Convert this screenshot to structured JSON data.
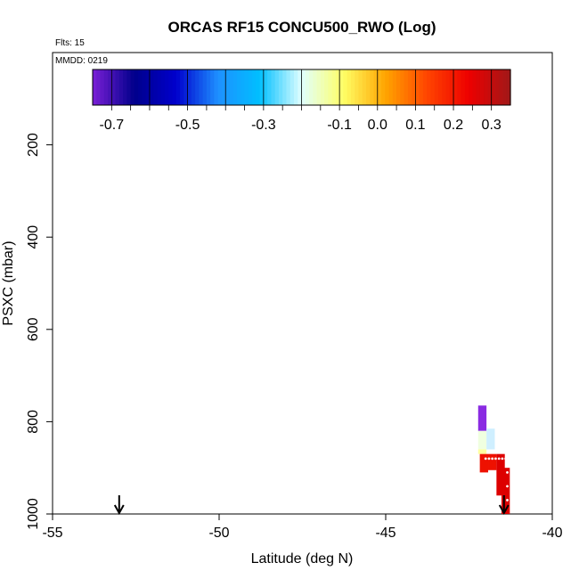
{
  "chart_data": {
    "type": "heatmap",
    "title": "ORCAS RF15 CONCU500_RWO (Log)",
    "flights_label": "Flts: 15",
    "date_label": "MMDD: 0219",
    "xlabel": "Latitude (deg N)",
    "ylabel": "PSXC (mbar)",
    "xlim": [
      -55,
      -40
    ],
    "ylim": [
      1000,
      0
    ],
    "x_ticks": [
      -55,
      -50,
      -45,
      -40
    ],
    "x_tick_labels": [
      "-55",
      "-50",
      "-45",
      "-40"
    ],
    "y_ticks": [
      200,
      400,
      600,
      800,
      1000
    ],
    "y_tick_labels": [
      "200",
      "400",
      "600",
      "800",
      "1000"
    ],
    "colorbar": {
      "range": [
        -0.75,
        0.35
      ],
      "ticks": [
        -0.7,
        -0.5,
        -0.3,
        -0.1,
        0.0,
        0.1,
        0.2,
        0.3
      ],
      "tick_labels": [
        "-0.7",
        "-0.5",
        "-0.3",
        "-0.1",
        "0.0",
        "0.1",
        "0.2",
        "0.3"
      ],
      "stops": [
        "#7b1fd6",
        "#00008b",
        "#0000cd",
        "#1e90ff",
        "#00bfff",
        "#e0ffff",
        "#ffff66",
        "#ffa500",
        "#ff4500",
        "#ee0000",
        "#a01818"
      ]
    },
    "cells": [
      {
        "lat": -42.1,
        "p0": 765,
        "p1": 820,
        "color": "#8a2be2"
      },
      {
        "lat": -42.1,
        "p0": 820,
        "p1": 860,
        "color": "#f0ffe0"
      },
      {
        "lat": -41.85,
        "p0": 815,
        "p1": 860,
        "color": "#cfefff"
      },
      {
        "lat": -42.1,
        "p0": 860,
        "p1": 870,
        "color": "#ffffa0"
      },
      {
        "lat": -42.05,
        "p0": 870,
        "p1": 910,
        "color": "#ee1100"
      },
      {
        "lat": -41.8,
        "p0": 870,
        "p1": 905,
        "color": "#ee1100"
      },
      {
        "lat": -41.55,
        "p0": 870,
        "p1": 960,
        "color": "#dd0000"
      },
      {
        "lat": -41.4,
        "p0": 900,
        "p1": 1000,
        "color": "#dd0000"
      }
    ],
    "track_points": [
      {
        "lat": -42.0,
        "p": 880
      },
      {
        "lat": -41.9,
        "p": 880
      },
      {
        "lat": -41.8,
        "p": 880
      },
      {
        "lat": -41.7,
        "p": 880
      },
      {
        "lat": -41.6,
        "p": 880
      },
      {
        "lat": -41.5,
        "p": 880
      },
      {
        "lat": -41.4,
        "p": 880
      },
      {
        "lat": -41.35,
        "p": 910
      },
      {
        "lat": -41.35,
        "p": 940
      },
      {
        "lat": -41.35,
        "p": 970
      }
    ],
    "arrows": [
      {
        "lat": -53.0
      },
      {
        "lat": -41.45
      }
    ]
  }
}
